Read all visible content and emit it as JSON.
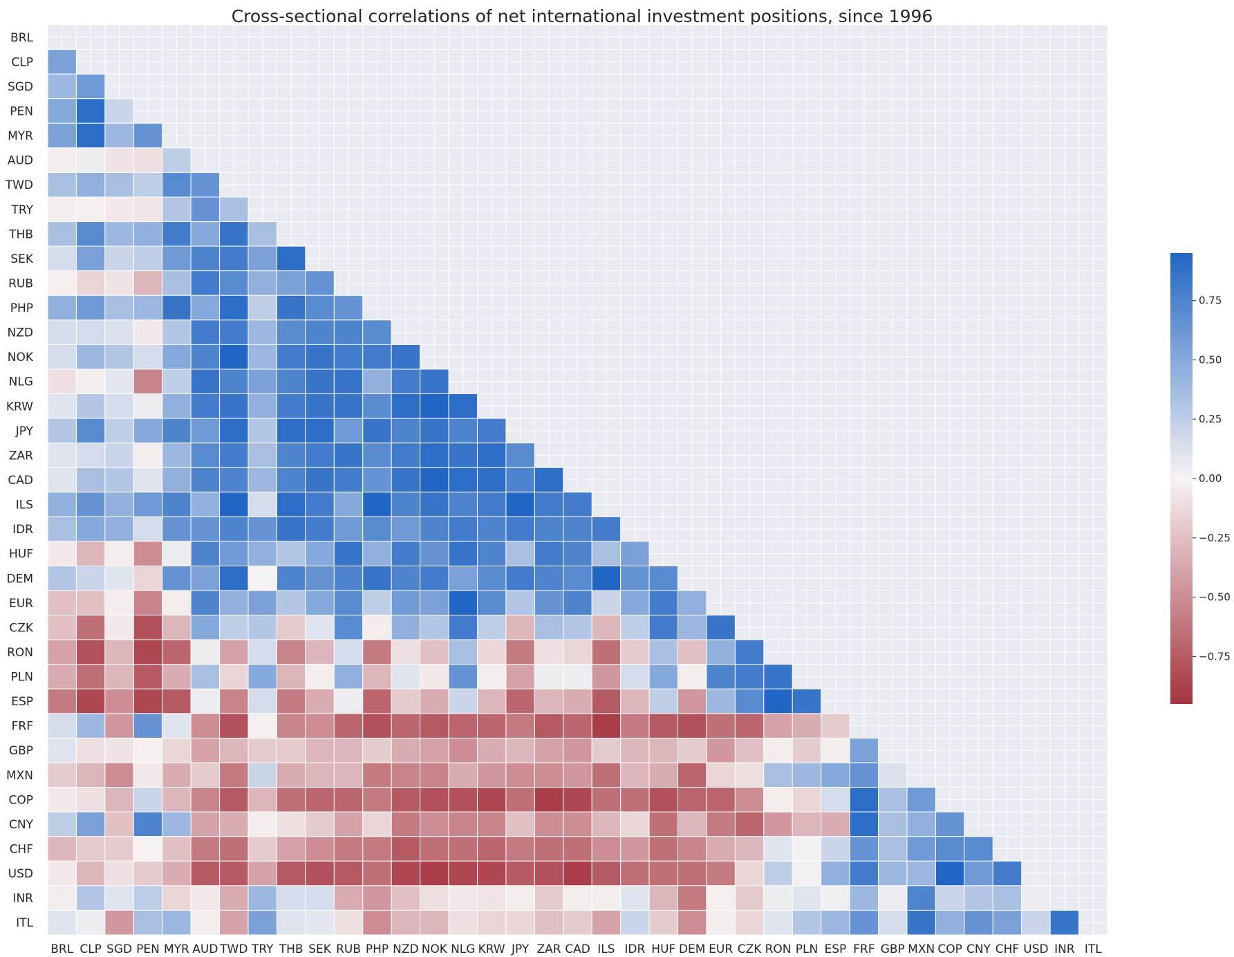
{
  "chart_data": {
    "type": "heatmap",
    "title": "Cross-sectional correlations of net international investment positions, since 1996",
    "labels": [
      "BRL",
      "CLP",
      "SGD",
      "PEN",
      "MYR",
      "AUD",
      "TWD",
      "TRY",
      "THB",
      "SEK",
      "RUB",
      "PHP",
      "NZD",
      "NOK",
      "NLG",
      "KRW",
      "JPY",
      "ZAR",
      "CAD",
      "ILS",
      "IDR",
      "HUF",
      "DEM",
      "EUR",
      "CZK",
      "RON",
      "PLN",
      "ESP",
      "FRF",
      "GBP",
      "MXN",
      "COP",
      "CNY",
      "CHF",
      "USD",
      "INR",
      "ITL"
    ],
    "matrix": [
      [],
      [
        0.55
      ],
      [
        0.4,
        0.6
      ],
      [
        0.5,
        0.9,
        0.2
      ],
      [
        0.55,
        0.9,
        0.4,
        0.65
      ],
      [
        -0.03,
        0.05,
        -0.08,
        -0.1,
        0.25
      ],
      [
        0.35,
        0.45,
        0.35,
        0.25,
        0.7,
        0.65
      ],
      [
        -0.03,
        -0.02,
        -0.05,
        -0.07,
        0.3,
        0.65,
        0.35
      ],
      [
        0.35,
        0.7,
        0.4,
        0.45,
        0.8,
        0.5,
        0.85,
        0.35
      ],
      [
        0.15,
        0.55,
        0.2,
        0.25,
        0.6,
        0.75,
        0.8,
        0.55,
        0.9
      ],
      [
        -0.02,
        -0.15,
        -0.08,
        -0.3,
        0.35,
        0.8,
        0.7,
        0.45,
        0.55,
        0.65
      ],
      [
        0.45,
        0.6,
        0.35,
        0.4,
        0.85,
        0.5,
        0.9,
        0.25,
        0.85,
        0.7,
        0.65
      ],
      [
        0.15,
        0.15,
        0.12,
        -0.05,
        0.3,
        0.8,
        0.8,
        0.4,
        0.7,
        0.75,
        0.75,
        0.7
      ],
      [
        0.15,
        0.4,
        0.3,
        0.15,
        0.5,
        0.75,
        0.95,
        0.4,
        0.8,
        0.85,
        0.8,
        0.8,
        0.85
      ],
      [
        -0.1,
        -0.03,
        0.08,
        -0.55,
        0.25,
        0.85,
        0.75,
        0.55,
        0.75,
        0.85,
        0.85,
        0.45,
        0.8,
        0.85
      ],
      [
        0.1,
        0.3,
        0.15,
        0.05,
        0.45,
        0.8,
        0.85,
        0.45,
        0.8,
        0.85,
        0.85,
        0.7,
        0.9,
        0.95,
        0.9
      ],
      [
        0.3,
        0.7,
        0.25,
        0.5,
        0.75,
        0.6,
        0.9,
        0.3,
        0.9,
        0.9,
        0.6,
        0.85,
        0.75,
        0.85,
        0.75,
        0.8
      ],
      [
        0.1,
        0.15,
        0.2,
        -0.03,
        0.4,
        0.7,
        0.8,
        0.35,
        0.75,
        0.8,
        0.85,
        0.7,
        0.8,
        0.9,
        0.85,
        0.9,
        0.7
      ],
      [
        0.1,
        0.35,
        0.3,
        0.1,
        0.45,
        0.75,
        0.75,
        0.4,
        0.75,
        0.85,
        0.8,
        0.65,
        0.85,
        0.95,
        0.9,
        0.9,
        0.75,
        0.9
      ],
      [
        0.45,
        0.65,
        0.45,
        0.6,
        0.75,
        0.45,
        1.0,
        0.15,
        0.9,
        0.8,
        0.5,
        0.95,
        0.75,
        0.85,
        0.75,
        0.8,
        0.95,
        0.8,
        0.8
      ],
      [
        0.35,
        0.5,
        0.45,
        0.15,
        0.65,
        0.65,
        0.75,
        0.65,
        0.85,
        0.8,
        0.6,
        0.7,
        0.6,
        0.75,
        0.8,
        0.75,
        0.8,
        0.75,
        0.75,
        0.8
      ],
      [
        -0.05,
        -0.3,
        -0.03,
        -0.5,
        0.05,
        0.75,
        0.6,
        0.45,
        0.3,
        0.5,
        0.85,
        0.45,
        0.8,
        0.65,
        0.85,
        0.75,
        0.35,
        0.8,
        0.75,
        0.35,
        0.55
      ],
      [
        0.3,
        0.2,
        0.1,
        -0.15,
        0.65,
        0.55,
        0.9,
        0.0,
        0.75,
        0.65,
        0.75,
        0.85,
        0.75,
        0.8,
        0.55,
        0.7,
        0.8,
        0.75,
        0.7,
        1.0,
        0.65,
        0.7
      ],
      [
        -0.25,
        -0.25,
        -0.03,
        -0.55,
        -0.03,
        0.75,
        0.45,
        0.55,
        0.3,
        0.5,
        0.7,
        0.25,
        0.6,
        0.55,
        1.0,
        0.7,
        0.3,
        0.65,
        0.75,
        0.2,
        0.5,
        0.8,
        0.45
      ],
      [
        -0.25,
        -0.65,
        -0.05,
        -0.8,
        -0.3,
        0.5,
        0.25,
        0.3,
        -0.2,
        0.1,
        0.7,
        -0.03,
        0.45,
        0.3,
        0.8,
        0.25,
        -0.3,
        0.35,
        0.3,
        -0.3,
        0.25,
        0.8,
        0.4,
        0.85
      ],
      [
        -0.4,
        -0.8,
        -0.3,
        -0.85,
        -0.7,
        0.05,
        -0.4,
        0.15,
        -0.55,
        -0.3,
        0.15,
        -0.6,
        -0.1,
        -0.25,
        0.35,
        -0.15,
        -0.6,
        -0.1,
        -0.15,
        -0.65,
        -0.2,
        0.35,
        -0.25,
        0.45,
        0.8
      ],
      [
        -0.35,
        -0.65,
        -0.3,
        -0.75,
        -0.35,
        0.35,
        -0.15,
        0.5,
        -0.3,
        -0.03,
        0.45,
        -0.3,
        0.1,
        -0.05,
        0.65,
        -0.03,
        -0.4,
        0.05,
        0.05,
        -0.45,
        0.15,
        0.5,
        -0.03,
        0.75,
        0.8,
        0.85
      ],
      [
        -0.6,
        -0.85,
        -0.5,
        -0.85,
        -0.75,
        0.05,
        -0.55,
        0.15,
        -0.6,
        -0.35,
        0.05,
        -0.7,
        -0.2,
        -0.35,
        0.2,
        -0.3,
        -0.7,
        -0.3,
        -0.35,
        -0.75,
        -0.3,
        0.25,
        -0.45,
        0.4,
        0.7,
        1.0,
        0.85
      ],
      [
        0.15,
        0.4,
        -0.45,
        0.65,
        0.1,
        -0.5,
        -0.8,
        -0.02,
        -0.55,
        -0.5,
        -0.7,
        -0.8,
        -0.7,
        -0.75,
        -0.7,
        -0.7,
        -0.6,
        -0.75,
        -0.7,
        -0.9,
        -0.6,
        -0.75,
        -0.8,
        -0.65,
        -0.7,
        -0.4,
        -0.35,
        -0.2
      ],
      [
        0.1,
        -0.1,
        -0.08,
        -0.02,
        -0.15,
        -0.4,
        -0.3,
        -0.2,
        -0.2,
        -0.3,
        -0.3,
        -0.2,
        -0.35,
        -0.4,
        -0.5,
        -0.35,
        -0.3,
        -0.4,
        -0.45,
        -0.2,
        -0.3,
        -0.3,
        -0.2,
        -0.45,
        -0.25,
        -0.03,
        -0.2,
        -0.03,
        0.55
      ],
      [
        -0.2,
        -0.3,
        -0.5,
        -0.05,
        -0.35,
        -0.2,
        -0.6,
        0.2,
        -0.35,
        -0.3,
        -0.3,
        -0.6,
        -0.55,
        -0.55,
        -0.35,
        -0.45,
        -0.5,
        -0.5,
        -0.45,
        -0.65,
        -0.3,
        -0.35,
        -0.7,
        -0.15,
        -0.1,
        0.35,
        0.4,
        0.5,
        0.65,
        0.12
      ],
      [
        -0.05,
        -0.1,
        -0.3,
        0.2,
        -0.3,
        -0.55,
        -0.75,
        -0.3,
        -0.65,
        -0.7,
        -0.7,
        -0.6,
        -0.75,
        -0.8,
        -0.8,
        -0.85,
        -0.65,
        -0.9,
        -0.85,
        -0.65,
        -0.65,
        -0.8,
        -0.7,
        -0.7,
        -0.5,
        -0.03,
        -0.15,
        0.15,
        0.9,
        0.35,
        0.6
      ],
      [
        0.25,
        0.55,
        -0.25,
        0.75,
        0.4,
        -0.4,
        -0.35,
        -0.03,
        -0.1,
        -0.2,
        -0.4,
        -0.15,
        -0.6,
        -0.5,
        -0.55,
        -0.55,
        -0.25,
        -0.5,
        -0.5,
        -0.3,
        -0.15,
        -0.65,
        -0.3,
        -0.6,
        -0.7,
        -0.45,
        -0.3,
        -0.35,
        0.9,
        0.35,
        0.45,
        0.65
      ],
      [
        -0.3,
        -0.2,
        -0.2,
        0.0,
        -0.25,
        -0.6,
        -0.65,
        -0.2,
        -0.4,
        -0.5,
        -0.6,
        -0.6,
        -0.75,
        -0.65,
        -0.65,
        -0.7,
        -0.6,
        -0.65,
        -0.65,
        -0.5,
        -0.45,
        -0.65,
        -0.55,
        -0.35,
        -0.3,
        0.1,
        0.02,
        0.2,
        0.65,
        0.35,
        0.6,
        0.7,
        0.7
      ],
      [
        -0.05,
        -0.3,
        -0.1,
        -0.2,
        -0.35,
        -0.75,
        -0.75,
        -0.4,
        -0.75,
        -0.8,
        -0.75,
        -0.65,
        -0.85,
        -0.9,
        -0.85,
        -0.85,
        -0.75,
        -0.8,
        -0.9,
        -0.75,
        -0.65,
        -0.65,
        -0.65,
        -0.6,
        -0.15,
        0.25,
        0.02,
        0.45,
        0.8,
        0.4,
        0.4,
        0.95,
        0.6,
        0.8
      ],
      [
        -0.03,
        0.3,
        0.1,
        0.25,
        -0.15,
        -0.05,
        -0.35,
        0.4,
        0.15,
        0.15,
        -0.35,
        -0.45,
        -0.25,
        -0.1,
        -0.05,
        -0.08,
        -0.03,
        -0.2,
        -0.03,
        -0.03,
        0.1,
        -0.3,
        -0.6,
        -0.02,
        -0.2,
        0.05,
        0.1,
        0.03,
        0.4,
        0.05,
        0.75,
        0.2,
        0.3,
        0.35,
        0.05
      ],
      [
        0.1,
        0.05,
        -0.45,
        0.35,
        0.4,
        -0.03,
        -0.4,
        0.55,
        0.1,
        0.08,
        -0.1,
        -0.5,
        -0.3,
        -0.3,
        -0.1,
        -0.15,
        -0.15,
        -0.25,
        -0.2,
        -0.4,
        0.2,
        -0.2,
        -0.5,
        -0.03,
        -0.15,
        0.1,
        0.3,
        0.4,
        0.65,
        0.15,
        0.85,
        0.45,
        0.65,
        0.55,
        0.2,
        0.85
      ]
    ],
    "colorbar": {
      "vmin": -0.95,
      "vmax": 0.95,
      "ticks": [
        "0.75",
        "0.50",
        "0.25",
        "0.00",
        "−0.25",
        "−0.50",
        "−0.75"
      ],
      "tick_values": [
        0.75,
        0.5,
        0.25,
        0.0,
        -0.25,
        -0.5,
        -0.75
      ]
    },
    "colors": {
      "positive": "#2166c4",
      "neutral": "#f7f3f4",
      "negative": "#a5333e",
      "background": "#eaeaf2"
    }
  }
}
